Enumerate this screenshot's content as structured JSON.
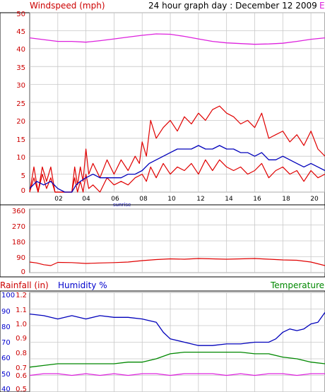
{
  "top_chart": {
    "title": "Windspeed (mph)",
    "subtitle": "24 hour graph day : December 12 2009",
    "legend_marker": "E",
    "y_ticks": [
      "50",
      "45",
      "40",
      "35",
      "30",
      "25",
      "20",
      "15",
      "10",
      "5",
      "0"
    ],
    "x_ticks": [
      "02",
      "04",
      "06",
      "08",
      "10",
      "12",
      "14",
      "16",
      "18",
      "20"
    ],
    "sunrise_label": "sunrise"
  },
  "mid_chart": {
    "y_ticks": [
      "360",
      "270",
      "180",
      "90",
      "0"
    ]
  },
  "bottom_chart": {
    "rainfall_label": "Rainfall (in)",
    "humidity_label": "Humidity %",
    "temperature_label": "Temperature",
    "humidity_ticks": [
      "100",
      "90",
      "80",
      "70",
      "60",
      "50",
      "40"
    ],
    "rainfall_ticks": [
      "1.2",
      "1.1",
      "1.0",
      "0.9",
      "0.8",
      "0.7",
      "0.6",
      "0.5"
    ]
  },
  "colors": {
    "gust": "#e00000",
    "average": "#0000bb",
    "magenta": "#dd22dd",
    "temperature": "#008800",
    "grid": "#c8c8c8",
    "title_red": "#cc0000",
    "blue_text": "#0000cc",
    "green_text": "#008800"
  },
  "chart_data": [
    {
      "type": "line",
      "title": "Windspeed (mph)",
      "subtitle": "24 hour graph day : December 12 2009",
      "x_unit": "hour",
      "xlim": [
        0,
        21
      ],
      "ylim": [
        0,
        50
      ],
      "grid": true,
      "series": [
        {
          "points": [
            [
              0,
              0
            ],
            [
              0.3,
              7
            ],
            [
              0.6,
              0
            ],
            [
              0.9,
              7
            ],
            [
              1.2,
              3
            ],
            [
              1.5,
              7
            ],
            [
              1.8,
              0
            ],
            [
              2.5,
              0
            ],
            [
              3.0,
              0
            ],
            [
              3.2,
              7
            ],
            [
              3.4,
              2
            ],
            [
              3.6,
              7
            ],
            [
              3.8,
              3
            ],
            [
              4.0,
              12
            ],
            [
              4.2,
              5
            ],
            [
              4.5,
              8
            ],
            [
              5.0,
              4
            ],
            [
              5.5,
              9
            ],
            [
              6.0,
              5
            ],
            [
              6.5,
              9
            ],
            [
              7.0,
              6
            ],
            [
              7.5,
              10
            ],
            [
              7.8,
              8
            ],
            [
              8.0,
              14
            ],
            [
              8.3,
              10
            ],
            [
              8.6,
              20
            ],
            [
              9.0,
              15
            ],
            [
              9.5,
              18
            ],
            [
              10.0,
              20
            ],
            [
              10.5,
              17
            ],
            [
              11.0,
              21
            ],
            [
              11.5,
              19
            ],
            [
              12.0,
              22
            ],
            [
              12.5,
              20
            ],
            [
              13.0,
              23
            ],
            [
              13.5,
              24
            ],
            [
              14.0,
              22
            ],
            [
              14.5,
              21
            ],
            [
              15.0,
              19
            ],
            [
              15.5,
              20
            ],
            [
              16.0,
              18
            ],
            [
              16.5,
              22
            ],
            [
              17.0,
              15
            ],
            [
              17.5,
              16
            ],
            [
              18.0,
              17
            ],
            [
              18.5,
              14
            ],
            [
              19.0,
              16
            ],
            [
              19.5,
              13
            ],
            [
              20.0,
              17
            ],
            [
              20.5,
              12
            ],
            [
              21,
              10
            ]
          ]
        },
        {
          "points": [
            [
              0,
              0
            ],
            [
              0.3,
              4
            ],
            [
              0.6,
              0
            ],
            [
              0.9,
              5
            ],
            [
              1.2,
              1
            ],
            [
              1.5,
              4
            ],
            [
              1.8,
              0
            ],
            [
              2.5,
              0
            ],
            [
              3.0,
              0
            ],
            [
              3.2,
              4
            ],
            [
              3.4,
              0
            ],
            [
              3.6,
              3
            ],
            [
              3.8,
              0
            ],
            [
              4.0,
              5
            ],
            [
              4.2,
              1
            ],
            [
              4.5,
              2
            ],
            [
              5.0,
              0
            ],
            [
              5.5,
              4
            ],
            [
              6.0,
              2
            ],
            [
              6.5,
              3
            ],
            [
              7.0,
              2
            ],
            [
              7.5,
              4
            ],
            [
              8.0,
              5
            ],
            [
              8.3,
              3
            ],
            [
              8.6,
              7
            ],
            [
              9.0,
              4
            ],
            [
              9.5,
              8
            ],
            [
              10.0,
              5
            ],
            [
              10.5,
              7
            ],
            [
              11.0,
              6
            ],
            [
              11.5,
              8
            ],
            [
              12.0,
              5
            ],
            [
              12.5,
              9
            ],
            [
              13.0,
              6
            ],
            [
              13.5,
              9
            ],
            [
              14.0,
              7
            ],
            [
              14.5,
              6
            ],
            [
              15.0,
              7
            ],
            [
              15.5,
              5
            ],
            [
              16.0,
              6
            ],
            [
              16.5,
              8
            ],
            [
              17.0,
              4
            ],
            [
              17.5,
              6
            ],
            [
              18.0,
              7
            ],
            [
              18.5,
              5
            ],
            [
              19.0,
              6
            ],
            [
              19.5,
              3
            ],
            [
              20.0,
              6
            ],
            [
              20.5,
              4
            ],
            [
              21,
              5
            ]
          ]
        },
        {
          "points": [
            [
              0,
              1
            ],
            [
              0.5,
              3
            ],
            [
              1.0,
              2
            ],
            [
              1.5,
              3
            ],
            [
              2.0,
              1
            ],
            [
              2.5,
              0
            ],
            [
              3.0,
              0
            ],
            [
              3.3,
              2
            ],
            [
              3.6,
              3
            ],
            [
              4.0,
              4
            ],
            [
              4.5,
              5
            ],
            [
              5.0,
              4
            ],
            [
              5.5,
              4
            ],
            [
              6.0,
              4
            ],
            [
              6.5,
              4
            ],
            [
              7.0,
              5
            ],
            [
              7.5,
              5
            ],
            [
              8.0,
              6
            ],
            [
              8.5,
              8
            ],
            [
              9.0,
              9
            ],
            [
              9.5,
              10
            ],
            [
              10.0,
              11
            ],
            [
              10.5,
              12
            ],
            [
              11.0,
              12
            ],
            [
              11.5,
              12
            ],
            [
              12.0,
              13
            ],
            [
              12.5,
              12
            ],
            [
              13.0,
              12
            ],
            [
              13.5,
              13
            ],
            [
              14.0,
              12
            ],
            [
              14.5,
              12
            ],
            [
              15.0,
              11
            ],
            [
              15.5,
              11
            ],
            [
              16.0,
              10
            ],
            [
              16.5,
              11
            ],
            [
              17.0,
              9
            ],
            [
              17.5,
              9
            ],
            [
              18.0,
              10
            ],
            [
              18.5,
              9
            ],
            [
              19.0,
              8
            ],
            [
              19.5,
              7
            ],
            [
              20.0,
              8
            ],
            [
              20.5,
              7
            ],
            [
              21,
              6
            ]
          ]
        },
        {
          "points": [
            [
              0,
              43
            ],
            [
              1,
              42.5
            ],
            [
              2,
              42
            ],
            [
              3,
              42
            ],
            [
              4,
              41.8
            ],
            [
              5,
              42.2
            ],
            [
              6,
              42.7
            ],
            [
              7,
              43.2
            ],
            [
              8,
              43.7
            ],
            [
              9,
              44.1
            ],
            [
              10,
              44
            ],
            [
              11,
              43.4
            ],
            [
              12,
              42.7
            ],
            [
              13,
              42
            ],
            [
              14,
              41.6
            ],
            [
              15,
              41.4
            ],
            [
              16,
              41.2
            ],
            [
              17,
              41.3
            ],
            [
              18,
              41.5
            ],
            [
              19,
              42
            ],
            [
              20,
              42.6
            ],
            [
              21,
              43
            ]
          ]
        }
      ]
    },
    {
      "type": "line",
      "x_unit": "hour",
      "xlim": [
        0,
        21
      ],
      "ylim": [
        0,
        360
      ],
      "grid": true,
      "series": [
        {
          "points": [
            [
              0,
              60
            ],
            [
              0.5,
              55
            ],
            [
              1,
              45
            ],
            [
              1.5,
              40
            ],
            [
              2,
              58
            ],
            [
              3,
              57
            ],
            [
              4,
              52
            ],
            [
              5,
              55
            ],
            [
              6,
              57
            ],
            [
              7,
              60
            ],
            [
              8,
              68
            ],
            [
              9,
              74
            ],
            [
              10,
              78
            ],
            [
              11,
              76
            ],
            [
              12,
              80
            ],
            [
              13,
              78
            ],
            [
              14,
              76
            ],
            [
              15,
              78
            ],
            [
              16,
              80
            ],
            [
              17,
              76
            ],
            [
              18,
              72
            ],
            [
              19,
              70
            ],
            [
              20,
              60
            ],
            [
              21,
              40
            ]
          ]
        }
      ]
    },
    {
      "type": "line",
      "x_unit": "hour",
      "xlim": [
        0,
        21
      ],
      "ylim": [
        40,
        100
      ],
      "grid": true,
      "series": [
        {
          "name": "Humidity %",
          "points": [
            [
              0,
              87
            ],
            [
              1,
              86
            ],
            [
              2,
              84
            ],
            [
              3,
              86
            ],
            [
              4,
              84
            ],
            [
              5,
              86
            ],
            [
              6,
              85
            ],
            [
              7,
              85
            ],
            [
              8,
              84
            ],
            [
              9,
              82
            ],
            [
              9.5,
              76
            ],
            [
              10,
              72
            ],
            [
              11,
              70
            ],
            [
              12,
              68
            ],
            [
              13,
              68
            ],
            [
              14,
              69
            ],
            [
              15,
              69
            ],
            [
              16,
              70
            ],
            [
              17,
              70
            ],
            [
              17.5,
              72
            ],
            [
              18,
              76
            ],
            [
              18.5,
              78
            ],
            [
              19,
              77
            ],
            [
              19.5,
              78
            ],
            [
              20,
              81
            ],
            [
              20.5,
              82
            ],
            [
              21,
              88
            ]
          ]
        },
        {
          "name": "Temperature",
          "points": [
            [
              0,
              55
            ],
            [
              1,
              56
            ],
            [
              2,
              57
            ],
            [
              3,
              57
            ],
            [
              4,
              57
            ],
            [
              5,
              57
            ],
            [
              6,
              57
            ],
            [
              7,
              58
            ],
            [
              8,
              58
            ],
            [
              9,
              60
            ],
            [
              10,
              63
            ],
            [
              11,
              64
            ],
            [
              12,
              64
            ],
            [
              13,
              64
            ],
            [
              14,
              64
            ],
            [
              15,
              64
            ],
            [
              16,
              63
            ],
            [
              17,
              63
            ],
            [
              18,
              61
            ],
            [
              19,
              60
            ],
            [
              20,
              58
            ],
            [
              21,
              57
            ]
          ]
        },
        {
          "points": [
            [
              0,
              50
            ],
            [
              1,
              51
            ],
            [
              2,
              51
            ],
            [
              3,
              50
            ],
            [
              4,
              51
            ],
            [
              5,
              50
            ],
            [
              6,
              51
            ],
            [
              7,
              50
            ],
            [
              8,
              51
            ],
            [
              9,
              51
            ],
            [
              10,
              50
            ],
            [
              11,
              51
            ],
            [
              12,
              51
            ],
            [
              13,
              51
            ],
            [
              14,
              50
            ],
            [
              15,
              51
            ],
            [
              16,
              50
            ],
            [
              17,
              51
            ],
            [
              18,
              51
            ],
            [
              19,
              50
            ],
            [
              20,
              51
            ],
            [
              21,
              51
            ]
          ]
        }
      ]
    }
  ]
}
